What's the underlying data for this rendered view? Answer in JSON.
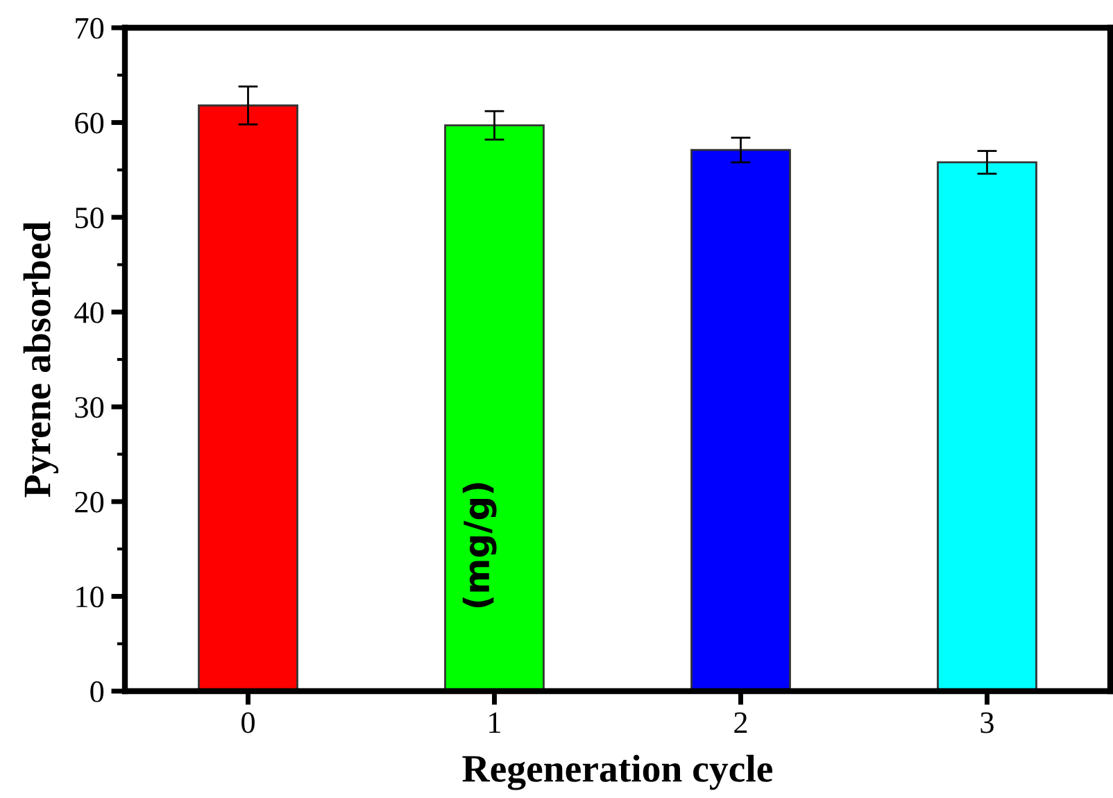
{
  "chart_data": {
    "type": "bar",
    "xlabel": "Regeneration cycle",
    "ylabel": "Pyrene absorbed",
    "annotations": [
      "(mg/g)"
    ],
    "categories": [
      "0",
      "1",
      "2",
      "3"
    ],
    "values": [
      61.8,
      59.7,
      57.1,
      55.8
    ],
    "colors": [
      "#ff0000",
      "#00ff00",
      "#0000ff",
      "#00ffff"
    ],
    "errors": [
      2.0,
      1.5,
      1.3,
      1.2
    ],
    "ylim": [
      0,
      70
    ],
    "yticks": [
      0,
      10,
      20,
      30,
      40,
      50,
      60,
      70
    ],
    "grid": false
  }
}
